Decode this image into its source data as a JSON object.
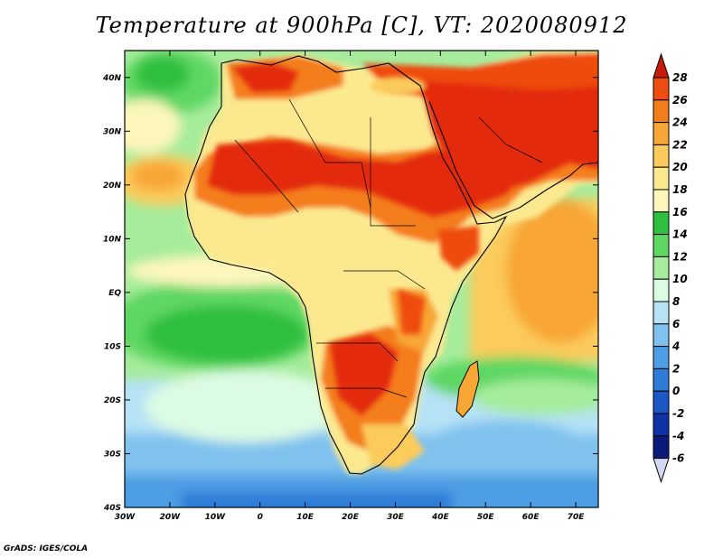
{
  "title": "Temperature at 900hPa [C], VT: 2020080912",
  "credit": "GrADS: IGES/COLA",
  "lat_axis": {
    "range": [
      -40,
      45
    ],
    "ticks": [
      {
        "value": 40,
        "label": "40N"
      },
      {
        "value": 30,
        "label": "30N"
      },
      {
        "value": 20,
        "label": "20N"
      },
      {
        "value": 10,
        "label": "10N"
      },
      {
        "value": 0,
        "label": "EQ"
      },
      {
        "value": -10,
        "label": "10S"
      },
      {
        "value": -20,
        "label": "20S"
      },
      {
        "value": -30,
        "label": "30S"
      },
      {
        "value": -40,
        "label": "40S"
      }
    ]
  },
  "lon_axis": {
    "range": [
      -30,
      75
    ],
    "ticks": [
      {
        "value": -30,
        "label": "30W"
      },
      {
        "value": -20,
        "label": "20W"
      },
      {
        "value": -10,
        "label": "10W"
      },
      {
        "value": 0,
        "label": "0"
      },
      {
        "value": 10,
        "label": "10E"
      },
      {
        "value": 20,
        "label": "20E"
      },
      {
        "value": 30,
        "label": "30E"
      },
      {
        "value": 40,
        "label": "40E"
      },
      {
        "value": 50,
        "label": "50E"
      },
      {
        "value": 60,
        "label": "60E"
      },
      {
        "value": 70,
        "label": "70E"
      }
    ]
  },
  "colorbar": {
    "levels": [
      {
        "value": 28,
        "label": "28",
        "color": "#e3290e"
      },
      {
        "value": 26,
        "label": "26",
        "color": "#ee4c10"
      },
      {
        "value": 24,
        "label": "24",
        "color": "#f47d1b"
      },
      {
        "value": 22,
        "label": "22",
        "color": "#f8a636"
      },
      {
        "value": 20,
        "label": "20",
        "color": "#fbcb5c"
      },
      {
        "value": 18,
        "label": "18",
        "color": "#fce98f"
      },
      {
        "value": 16,
        "label": "16",
        "color": "#fdf6bd"
      },
      {
        "value": 14,
        "label": "14",
        "color": "#2fbf3e"
      },
      {
        "value": 12,
        "label": "12",
        "color": "#5fd763"
      },
      {
        "value": 10,
        "label": "10",
        "color": "#a6ec9c"
      },
      {
        "value": 8,
        "label": "8",
        "color": "#dcfbe3"
      },
      {
        "value": 6,
        "label": "6",
        "color": "#b6e2f6"
      },
      {
        "value": 4,
        "label": "4",
        "color": "#80c2ee"
      },
      {
        "value": 2,
        "label": "2",
        "color": "#4d9ee4"
      },
      {
        "value": 0,
        "label": "0",
        "color": "#2f7bd8"
      },
      {
        "value": -2,
        "label": "-2",
        "color": "#1b57c5"
      },
      {
        "value": -4,
        "label": "-4",
        "color": "#0f32a6"
      },
      {
        "value": -6,
        "label": "-6",
        "color": "#0a1a7a"
      }
    ],
    "over_color": "#c71b0a",
    "under_color": "#d5d8f2"
  }
}
